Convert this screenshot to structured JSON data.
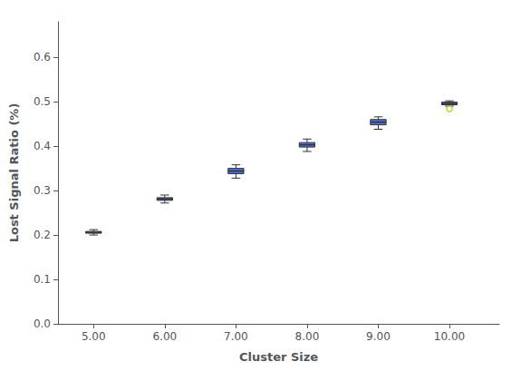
{
  "chart_data": {
    "type": "box",
    "xlabel": "Cluster Size",
    "ylabel": "Lost Signal Ratio (%)",
    "x": [
      5,
      6,
      7,
      8,
      9,
      10
    ],
    "whisker_low": [
      0.2,
      0.272,
      0.328,
      0.388,
      0.438,
      0.49
    ],
    "q1": [
      0.204,
      0.278,
      0.338,
      0.398,
      0.448,
      0.493
    ],
    "median": [
      0.206,
      0.281,
      0.344,
      0.403,
      0.454,
      0.496
    ],
    "q3": [
      0.208,
      0.284,
      0.35,
      0.408,
      0.46,
      0.499
    ],
    "whisker_high": [
      0.212,
      0.29,
      0.358,
      0.416,
      0.466,
      0.502
    ],
    "outliers": [
      [],
      [],
      [],
      [],
      [],
      [
        0.484
      ]
    ],
    "xlim": [
      4.5,
      10.7
    ],
    "xticks": [
      {
        "value": 5,
        "label": "5.00"
      },
      {
        "value": 6,
        "label": "6.00"
      },
      {
        "value": 7,
        "label": "7.00"
      },
      {
        "value": 8,
        "label": "8.00"
      },
      {
        "value": 9,
        "label": "9.00"
      },
      {
        "value": 10,
        "label": "10.00"
      }
    ],
    "ylim": [
      0.0,
      0.68
    ],
    "yticks": [
      {
        "value": 0.0,
        "label": "0.0"
      },
      0.1,
      0.2,
      0.3,
      0.4,
      0.5,
      0.6
    ],
    "grid": false
  }
}
